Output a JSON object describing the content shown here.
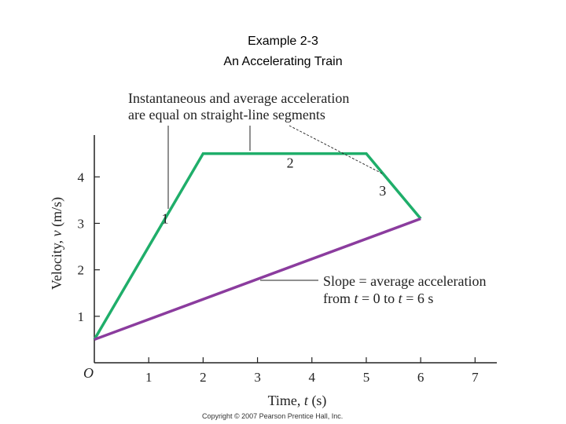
{
  "slide": {
    "title_line1": "Example 2-3",
    "title_line2": "An Accelerating Train",
    "copyright": "Copyright © 2007 Pearson Prentice Hall, Inc."
  },
  "chart_data": {
    "type": "line",
    "xlabel": {
      "prefix": "Time, ",
      "var": "t",
      "unit": " (s)"
    },
    "ylabel": {
      "prefix": "Velocity, ",
      "var": "v",
      "unit": " (m/s)"
    },
    "origin_label": "O",
    "xlim": [
      0,
      7.4
    ],
    "ylim": [
      0,
      4.9
    ],
    "x_ticks": [
      1,
      2,
      3,
      4,
      5,
      6,
      7
    ],
    "y_ticks": [
      1,
      2,
      3,
      4
    ],
    "colors": {
      "train": "#1fae6a",
      "slope": "#8b3c9e",
      "axis": "#222222",
      "annotation": "#222222"
    },
    "series": [
      {
        "id": "train",
        "x": [
          0,
          2,
          5,
          6
        ],
        "y": [
          0.5,
          4.5,
          4.5,
          3.1
        ]
      },
      {
        "id": "slope",
        "x": [
          0,
          6
        ],
        "y": [
          0.5,
          3.1
        ]
      }
    ],
    "segment_labels": [
      {
        "text": "1",
        "x": 1.3,
        "y": 3.0
      },
      {
        "text": "2",
        "x": 3.6,
        "y": 4.2
      },
      {
        "text": "3",
        "x": 5.3,
        "y": 3.6
      }
    ],
    "annotations": {
      "segments": {
        "line1": "Instantaneous and average acceleration",
        "line2": "are equal on straight-line segments"
      },
      "slope": {
        "line1": "Slope = average acceleration",
        "line2_parts": [
          "from ",
          "t",
          " = 0 to ",
          "t",
          " = 6 s"
        ]
      }
    }
  }
}
